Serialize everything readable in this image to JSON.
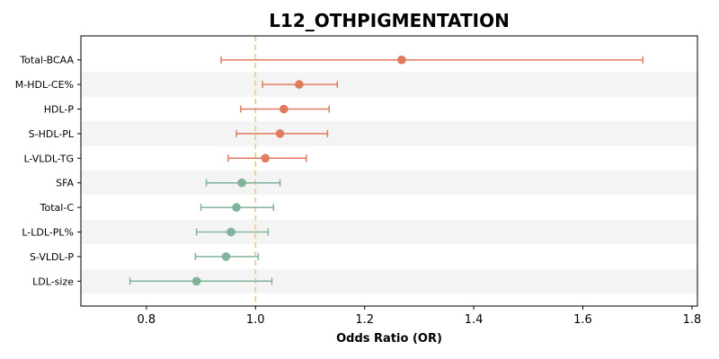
{
  "chart_data": {
    "type": "forest",
    "title": "L12_OTHPIGMENTATION",
    "xlabel": "Odds Ratio (OR)",
    "ylabel": "",
    "xlim": [
      0.68,
      1.81
    ],
    "x_ticks": [
      "0.8",
      "1.0",
      "1.2",
      "1.4",
      "1.6",
      "1.8"
    ],
    "reference_line": 1.0,
    "grid": false,
    "colors": {
      "or_above_1": "#E07B5F",
      "or_below_1": "#81B29A",
      "reference_line": "#F2CC8F",
      "row_band": "#F4F4F4"
    },
    "rows": [
      {
        "label": "Total-BCAA",
        "or": 1.268,
        "lower": 0.937,
        "upper": 1.71
      },
      {
        "label": "M-HDL-CE%",
        "or": 1.08,
        "lower": 1.013,
        "upper": 1.15
      },
      {
        "label": "HDL-P",
        "or": 1.052,
        "lower": 0.973,
        "upper": 1.135
      },
      {
        "label": "S-HDL-PL",
        "or": 1.045,
        "lower": 0.965,
        "upper": 1.132
      },
      {
        "label": "L-VLDL-TG",
        "or": 1.018,
        "lower": 0.95,
        "upper": 1.093
      },
      {
        "label": "SFA",
        "or": 0.975,
        "lower": 0.91,
        "upper": 1.045
      },
      {
        "label": "Total-C",
        "or": 0.965,
        "lower": 0.9,
        "upper": 1.033
      },
      {
        "label": "L-LDL-PL%",
        "or": 0.955,
        "lower": 0.892,
        "upper": 1.023
      },
      {
        "label": "S-VLDL-P",
        "or": 0.946,
        "lower": 0.89,
        "upper": 1.005
      },
      {
        "label": "LDL-size",
        "or": 0.892,
        "lower": 0.77,
        "upper": 1.03
      }
    ]
  }
}
